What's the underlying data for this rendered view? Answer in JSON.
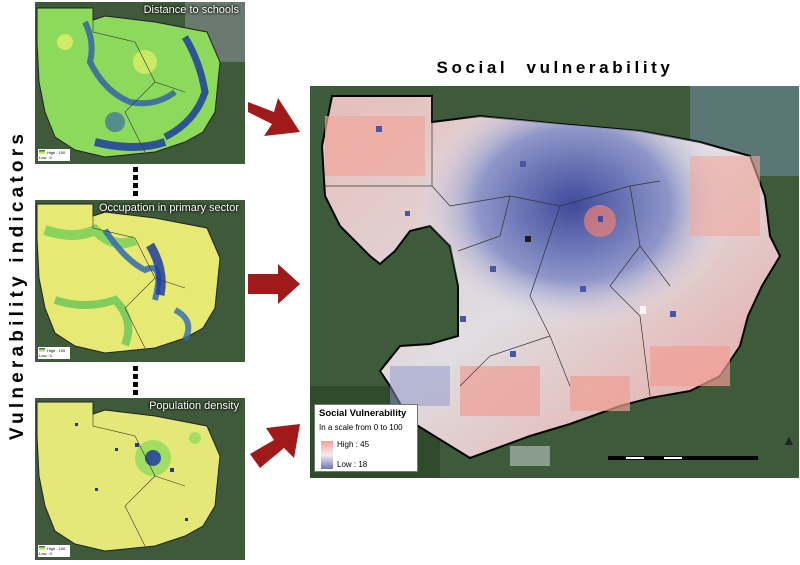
{
  "side_title": "Vulnerability indicators",
  "main_title": "Social vulnerability",
  "panels": [
    {
      "title": "Distance to schools",
      "legend_high": "High : 100",
      "legend_low": "Low : 0"
    },
    {
      "title": "Occupation in primary sector",
      "legend_high": "High : 100",
      "legend_low": "Low : 0"
    },
    {
      "title": "Population density",
      "legend_high": "High : 100",
      "legend_low": "Low : 0"
    }
  ],
  "legend": {
    "title": "Social Vulnerability",
    "subtitle": "In a scale from 0 to 100",
    "high": "High : 45",
    "low": "Low : 18"
  },
  "colors": {
    "high_vulnerability": "#f0857c",
    "low_vulnerability": "#4a55a3",
    "arrow": "#a0191b",
    "indicator_high": "#1e3c9c",
    "indicator_mid": "#8fd95a",
    "indicator_low": "#f2f060"
  },
  "icons": {
    "arrows": "right-arrow-icon",
    "north": "north-arrow-icon"
  }
}
